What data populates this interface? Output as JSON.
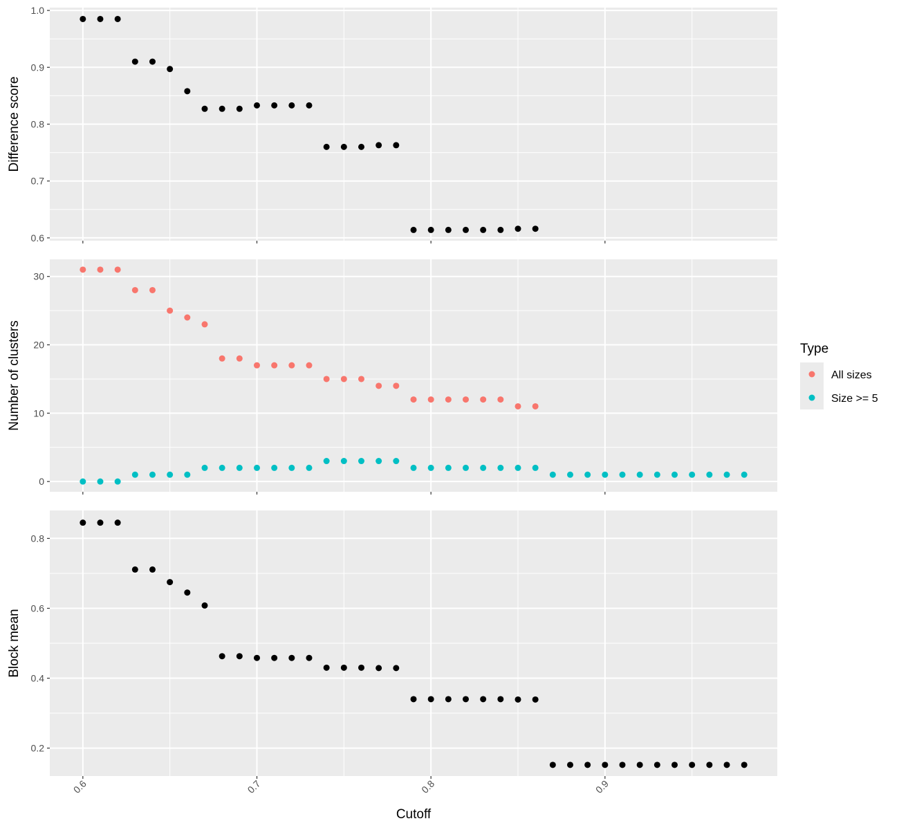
{
  "chart_data": {
    "type": "scatter",
    "x_axis": {
      "label": "Cutoff",
      "lim": [
        0.581,
        0.999
      ],
      "ticks": [
        0.6,
        0.7,
        0.8,
        0.9
      ],
      "tick_labels": [
        "0.6",
        "0.7",
        "0.8",
        "0.9"
      ],
      "tick_label_rotation_deg": -45
    },
    "grid": true,
    "background_color": "#ebebeb",
    "grid_color": "#ffffff",
    "panels": [
      {
        "ylabel": "Difference score",
        "ylim": [
          0.595,
          1.005
        ],
        "yticks": [
          0.6,
          0.7,
          0.8,
          0.9,
          1.0
        ],
        "ytick_labels": [
          "0.6",
          "0.7",
          "0.8",
          "0.9",
          "1.0"
        ],
        "series": [
          {
            "color": "#000000",
            "points": [
              [
                0.6,
                0.985
              ],
              [
                0.61,
                0.985
              ],
              [
                0.62,
                0.985
              ],
              [
                0.63,
                0.91
              ],
              [
                0.64,
                0.91
              ],
              [
                0.65,
                0.897
              ],
              [
                0.66,
                0.858
              ],
              [
                0.67,
                0.827
              ],
              [
                0.68,
                0.827
              ],
              [
                0.69,
                0.827
              ],
              [
                0.7,
                0.833
              ],
              [
                0.71,
                0.833
              ],
              [
                0.72,
                0.833
              ],
              [
                0.73,
                0.833
              ],
              [
                0.74,
                0.76
              ],
              [
                0.75,
                0.76
              ],
              [
                0.76,
                0.76
              ],
              [
                0.77,
                0.763
              ],
              [
                0.78,
                0.763
              ],
              [
                0.79,
                0.614
              ],
              [
                0.8,
                0.614
              ],
              [
                0.81,
                0.614
              ],
              [
                0.82,
                0.614
              ],
              [
                0.83,
                0.614
              ],
              [
                0.84,
                0.614
              ],
              [
                0.85,
                0.616
              ],
              [
                0.86,
                0.616
              ]
            ]
          }
        ]
      },
      {
        "ylabel": "Number of clusters",
        "ylim": [
          -1.5,
          32.5
        ],
        "yticks": [
          0,
          10,
          20,
          30
        ],
        "ytick_labels": [
          "0",
          "10",
          "20",
          "30"
        ],
        "series": [
          {
            "name": "All sizes",
            "color": "#f8766d",
            "points": [
              [
                0.6,
                31
              ],
              [
                0.61,
                31
              ],
              [
                0.62,
                31
              ],
              [
                0.63,
                28
              ],
              [
                0.64,
                28
              ],
              [
                0.65,
                25
              ],
              [
                0.66,
                24
              ],
              [
                0.67,
                23
              ],
              [
                0.68,
                18
              ],
              [
                0.69,
                18
              ],
              [
                0.7,
                17
              ],
              [
                0.71,
                17
              ],
              [
                0.72,
                17
              ],
              [
                0.73,
                17
              ],
              [
                0.74,
                15
              ],
              [
                0.75,
                15
              ],
              [
                0.76,
                15
              ],
              [
                0.77,
                14
              ],
              [
                0.78,
                14
              ],
              [
                0.79,
                12
              ],
              [
                0.8,
                12
              ],
              [
                0.81,
                12
              ],
              [
                0.82,
                12
              ],
              [
                0.83,
                12
              ],
              [
                0.84,
                12
              ],
              [
                0.85,
                11
              ],
              [
                0.86,
                11
              ]
            ]
          },
          {
            "name": "Size >= 5",
            "color": "#00bfc4",
            "points": [
              [
                0.6,
                0
              ],
              [
                0.61,
                0
              ],
              [
                0.62,
                0
              ],
              [
                0.63,
                1
              ],
              [
                0.64,
                1
              ],
              [
                0.65,
                1
              ],
              [
                0.66,
                1
              ],
              [
                0.67,
                2
              ],
              [
                0.68,
                2
              ],
              [
                0.69,
                2
              ],
              [
                0.7,
                2
              ],
              [
                0.71,
                2
              ],
              [
                0.72,
                2
              ],
              [
                0.73,
                2
              ],
              [
                0.74,
                3
              ],
              [
                0.75,
                3
              ],
              [
                0.76,
                3
              ],
              [
                0.77,
                3
              ],
              [
                0.78,
                3
              ],
              [
                0.79,
                2
              ],
              [
                0.8,
                2
              ],
              [
                0.81,
                2
              ],
              [
                0.82,
                2
              ],
              [
                0.83,
                2
              ],
              [
                0.84,
                2
              ],
              [
                0.85,
                2
              ],
              [
                0.86,
                2
              ],
              [
                0.87,
                1
              ],
              [
                0.88,
                1
              ],
              [
                0.89,
                1
              ],
              [
                0.9,
                1
              ],
              [
                0.91,
                1
              ],
              [
                0.92,
                1
              ],
              [
                0.93,
                1
              ],
              [
                0.94,
                1
              ],
              [
                0.95,
                1
              ],
              [
                0.96,
                1
              ],
              [
                0.97,
                1
              ],
              [
                0.98,
                1
              ]
            ]
          }
        ]
      },
      {
        "ylabel": "Block mean",
        "ylim": [
          0.12,
          0.88
        ],
        "yticks": [
          0.2,
          0.4,
          0.6,
          0.8
        ],
        "ytick_labels": [
          "0.2",
          "0.4",
          "0.6",
          "0.8"
        ],
        "series": [
          {
            "color": "#000000",
            "points": [
              [
                0.6,
                0.845
              ],
              [
                0.61,
                0.845
              ],
              [
                0.62,
                0.845
              ],
              [
                0.63,
                0.711
              ],
              [
                0.64,
                0.711
              ],
              [
                0.65,
                0.675
              ],
              [
                0.66,
                0.645
              ],
              [
                0.67,
                0.608
              ],
              [
                0.68,
                0.463
              ],
              [
                0.69,
                0.463
              ],
              [
                0.7,
                0.458
              ],
              [
                0.71,
                0.458
              ],
              [
                0.72,
                0.458
              ],
              [
                0.73,
                0.458
              ],
              [
                0.74,
                0.43
              ],
              [
                0.75,
                0.43
              ],
              [
                0.76,
                0.43
              ],
              [
                0.77,
                0.429
              ],
              [
                0.78,
                0.429
              ],
              [
                0.79,
                0.34
              ],
              [
                0.8,
                0.34
              ],
              [
                0.81,
                0.34
              ],
              [
                0.82,
                0.34
              ],
              [
                0.83,
                0.34
              ],
              [
                0.84,
                0.34
              ],
              [
                0.85,
                0.339
              ],
              [
                0.86,
                0.339
              ],
              [
                0.87,
                0.152
              ],
              [
                0.88,
                0.152
              ],
              [
                0.89,
                0.152
              ],
              [
                0.9,
                0.152
              ],
              [
                0.91,
                0.152
              ],
              [
                0.92,
                0.152
              ],
              [
                0.93,
                0.152
              ],
              [
                0.94,
                0.152
              ],
              [
                0.95,
                0.152
              ],
              [
                0.96,
                0.152
              ],
              [
                0.97,
                0.152
              ],
              [
                0.98,
                0.152
              ]
            ]
          }
        ]
      }
    ],
    "legend": {
      "title": "Type",
      "placement": "right",
      "entries": [
        {
          "label": "All sizes",
          "color": "#f8766d"
        },
        {
          "label": "Size >= 5",
          "color": "#00bfc4"
        }
      ]
    }
  }
}
